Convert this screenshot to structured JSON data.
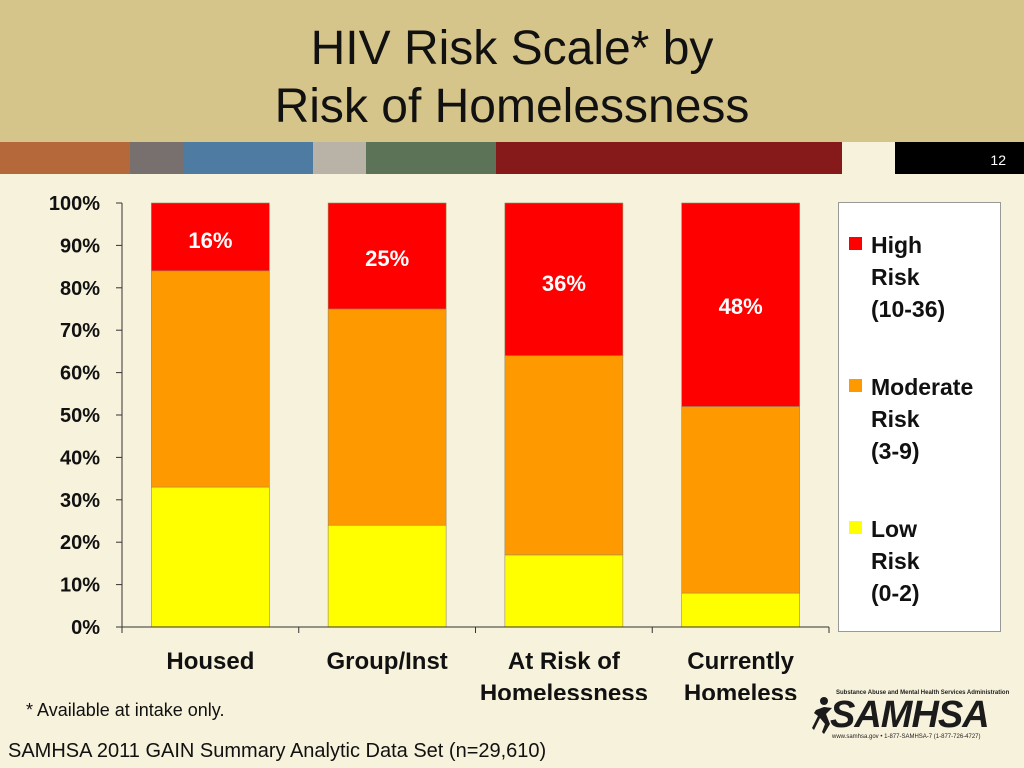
{
  "slide": {
    "title_line1": "HIV Risk Scale* by",
    "title_line2": "Risk of Homelessness",
    "slide_number": "12",
    "footnote": "* Available at intake only.",
    "source": "SAMHSA 2011 GAIN Summary Analytic Data Set (n=29,610)",
    "stripe_colors": [
      "#b5683a",
      "#77706e",
      "#4d7ba2",
      "#b8b3a6",
      "#5d7358",
      "#861a1a",
      "#f7f2dc"
    ]
  },
  "logo": {
    "top_text": "Substance Abuse and Mental Health Services Administration",
    "main_text": "SAMHSA",
    "bottom_text": "www.samhsa.gov • 1-877-SAMHSA-7 (1-877-726-4727)",
    "icon": "running-figure-icon"
  },
  "chart_data": {
    "type": "bar",
    "stacked": true,
    "categories": [
      "Housed",
      "Group/Inst",
      "At Risk of Homelessness",
      "Currently Homeless"
    ],
    "category_labels": [
      [
        "Housed"
      ],
      [
        "Group/Inst"
      ],
      [
        "At Risk of",
        "Homelessness"
      ],
      [
        "Currently",
        "Homeless"
      ]
    ],
    "series": [
      {
        "name": "Low Risk (0-2)",
        "legend_text": "Low\nRisk\n(0-2)",
        "color": "#ffff00",
        "values": [
          33,
          24,
          17,
          8
        ]
      },
      {
        "name": "Moderate Risk (3-9)",
        "legend_text": "Moderate\nRisk\n(3-9)",
        "color": "#ff9900",
        "values": [
          51,
          51,
          47,
          44
        ]
      },
      {
        "name": "High Risk (10-36)",
        "legend_text": "High\nRisk\n(10-36)",
        "color": "#ff0000",
        "values": [
          16,
          25,
          36,
          48
        ]
      }
    ],
    "data_labels": [
      "16%",
      "25%",
      "36%",
      "48%"
    ],
    "y_ticks": [
      "0%",
      "10%",
      "20%",
      "30%",
      "40%",
      "50%",
      "60%",
      "70%",
      "80%",
      "90%",
      "100%"
    ],
    "ylim": [
      0,
      100
    ],
    "grid": false,
    "legend_position": "right"
  }
}
